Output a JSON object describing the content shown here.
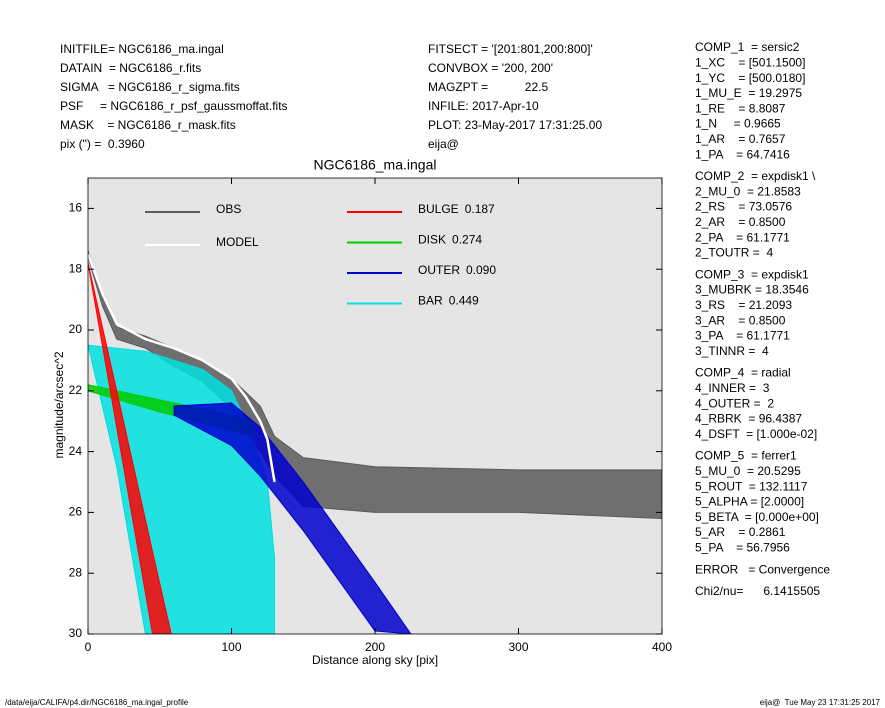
{
  "header": {
    "left": [
      "INITFILE= NGC6186_ma.ingal",
      "DATAIN  = NGC6186_r.fits",
      "SIGMA   = NGC6186_r_sigma.fits",
      "PSF     = NGC6186_r_psf_gaussmoffat.fits",
      "MASK    = NGC6186_r_mask.fits",
      "pix (\") =  0.3960"
    ],
    "middle": [
      "FITSECT = '[201:801,200:800]'",
      "CONVBOX = '200, 200'",
      "MAGZPT =           22.5",
      "INFILE: 2017-Apr-10",
      "PLOT: 23-May-2017 17:31:25.00",
      "eija@"
    ]
  },
  "parameters": [
    [
      "COMP_1  = sersic2",
      "1_XC    = [501.1500]",
      "1_YC    = [500.0180]",
      "1_MU_E  = 19.2975",
      "1_RE    = 8.8087",
      "1_N     = 0.9665",
      "1_AR    = 0.7657",
      "1_PA    = 64.7416"
    ],
    [
      "COMP_2  = expdisk1 \\",
      "2_MU_0  = 21.8583",
      "2_RS    = 73.0576",
      "2_AR    = 0.8500",
      "2_PA    = 61.1771",
      "2_TOUTR =  4"
    ],
    [
      "COMP_3  = expdisk1",
      "3_MUBRK = 18.3546",
      "3_RS    = 21.2093",
      "3_AR    = 0.8500",
      "3_PA    = 61.1771",
      "3_TINNR =  4"
    ],
    [
      "COMP_4  = radial",
      "4_INNER =  3",
      "4_OUTER =  2",
      "4_RBRK  = 96.4387",
      "4_DSFT  = [1.000e-02]"
    ],
    [
      "COMP_5  = ferrer1",
      "5_MU_0  = 20.5295",
      "5_ROUT  = 132.1117",
      "5_ALPHA = [2.0000]",
      "5_BETA  = [0.000e+00]",
      "5_AR    = 0.2861",
      "5_PA    = 56.7956"
    ],
    [
      "ERROR   = Convergence"
    ],
    [
      "Chi2/nu=      6.1415505"
    ]
  ],
  "footer": {
    "left": "/data/eija/CALIFA/p4.dir/NGC6186_ma.ingal_profile",
    "right": "eija@  Tue May 23 17:31:25 2017"
  },
  "chart_data": {
    "type": "band",
    "title": "NGC6186_ma.ingal",
    "x_label": "Distance along sky [pix]",
    "y_label": "magnitude/arcsec^2",
    "xlim": [
      0,
      400
    ],
    "ylim": [
      30,
      15
    ],
    "xticks": [
      0,
      100,
      200,
      300,
      400
    ],
    "yticks": [
      16,
      18,
      20,
      22,
      24,
      26,
      28,
      30
    ],
    "background": "#e5e5e5",
    "series": [
      {
        "name": "OBS",
        "color": "#5a5a5a",
        "x": [
          0,
          10,
          20,
          40,
          60,
          80,
          100,
          120,
          130,
          150,
          200,
          300,
          400
        ],
        "top": [
          17.4,
          18.8,
          19.9,
          20.2,
          20.6,
          21.0,
          21.6,
          22.5,
          23.5,
          24.2,
          24.5,
          24.6,
          24.6
        ],
        "bottom": [
          17.6,
          19.2,
          20.3,
          20.6,
          21.2,
          21.7,
          22.6,
          24.0,
          24.8,
          25.8,
          26.0,
          26.0,
          26.2
        ]
      },
      {
        "name": "MODEL",
        "color": "#ffffff",
        "x": [
          0,
          10,
          20,
          40,
          60,
          80,
          100,
          110,
          120,
          125,
          130
        ],
        "values": [
          17.5,
          18.8,
          19.8,
          20.3,
          20.6,
          21.0,
          21.6,
          22.2,
          23.0,
          23.6,
          25.0
        ]
      },
      {
        "name": "BULGE",
        "fraction": "0.187",
        "color": "#ff0000",
        "x": [
          0,
          20,
          45,
          58
        ],
        "top": [
          17.8,
          22.0,
          27.3,
          30
        ],
        "bottom": [
          17.8,
          23.2,
          30,
          30
        ]
      },
      {
        "name": "DISK",
        "fraction": "0.274",
        "color": "#00cc00",
        "x": [
          0,
          50,
          100,
          115
        ],
        "top": [
          21.8,
          22.3,
          22.8,
          23.0
        ],
        "bottom": [
          22.0,
          22.7,
          23.3,
          23.5
        ]
      },
      {
        "name": "OUTER",
        "fraction": "0.090",
        "color": "#0000cc",
        "x": [
          60,
          100,
          120,
          150,
          200,
          225
        ],
        "top": [
          22.5,
          22.4,
          23.2,
          25.0,
          28.3,
          30
        ],
        "bottom": [
          22.8,
          23.8,
          24.8,
          26.6,
          29.9,
          30
        ]
      },
      {
        "name": "BAR",
        "fraction": "0.449",
        "color": "#00e0e0",
        "x": [
          0,
          20,
          40,
          80,
          100,
          115,
          125,
          130
        ],
        "top": [
          20.5,
          20.6,
          20.7,
          21.3,
          22.0,
          23.5,
          25.0,
          27.5
        ],
        "bottom": [
          20.5,
          24.5,
          30,
          30,
          30,
          30,
          30,
          30
        ]
      }
    ]
  }
}
